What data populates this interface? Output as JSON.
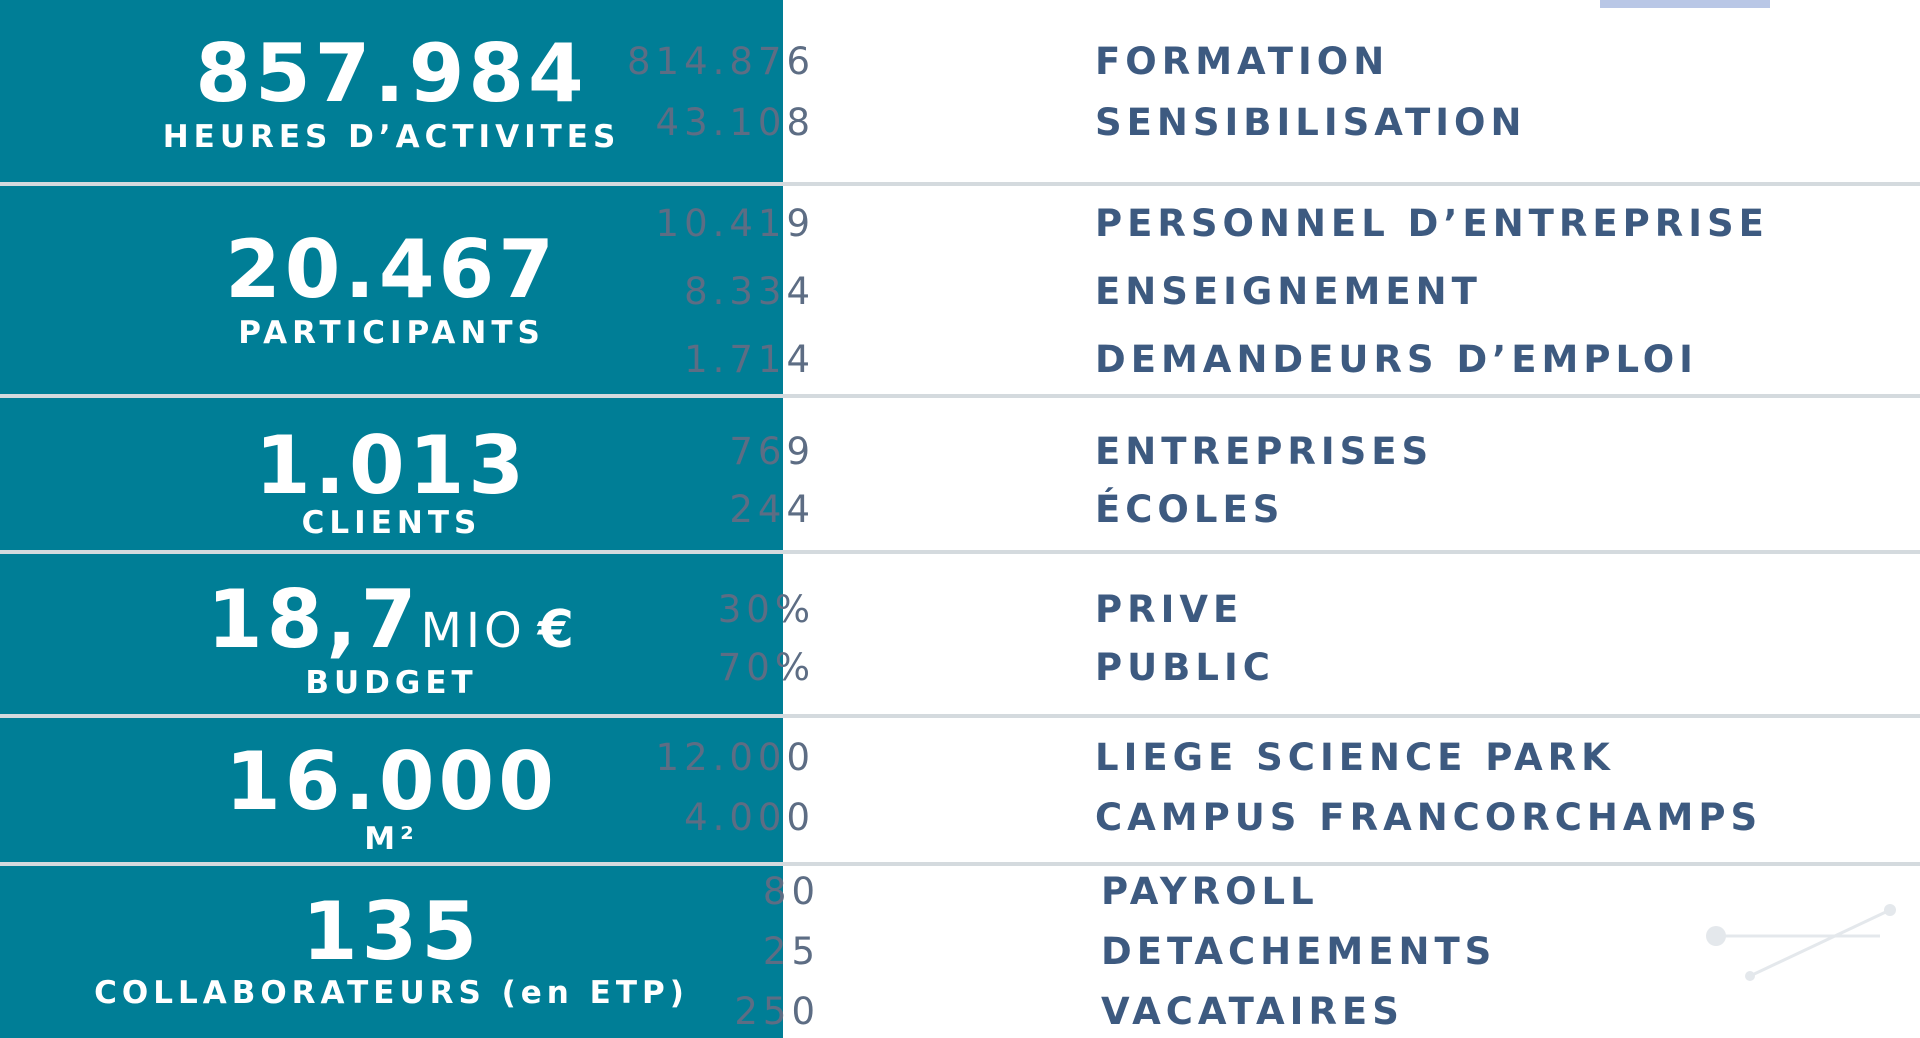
{
  "colors": {
    "accent": "#007e96",
    "value_text": "#5d6d84",
    "label_text": "#3d5a80",
    "separator": "#d4dade"
  },
  "stats": [
    {
      "number": "857.984",
      "label": "HEURES D’ACTIVITES",
      "details": [
        {
          "value": "814.876",
          "label": "FORMATION"
        },
        {
          "value": "43.108",
          "label": "SENSIBILISATION"
        }
      ]
    },
    {
      "number": "20.467",
      "label": "PARTICIPANTS",
      "details": [
        {
          "value": "10.419",
          "label": "PERSONNEL D’ENTREPRISE"
        },
        {
          "value": "8.334",
          "label": "ENSEIGNEMENT"
        },
        {
          "value": "1.714",
          "label": "DEMANDEURS D’EMPLOI"
        }
      ]
    },
    {
      "number": "1.013",
      "label": "CLIENTS",
      "details": [
        {
          "value": "769",
          "label": "ENTREPRISES"
        },
        {
          "value": "244",
          "label": "ÉCOLES"
        }
      ]
    },
    {
      "number": "18,7",
      "unit": "MIO",
      "unit_symbol": "€",
      "label": "BUDGET",
      "details": [
        {
          "value": "30%",
          "label": "PRIVE"
        },
        {
          "value": "70%",
          "label": "PUBLIC"
        }
      ]
    },
    {
      "number": "16.000",
      "label": "M²",
      "details": [
        {
          "value": "12.000",
          "label": "LIEGE SCIENCE PARK"
        },
        {
          "value": "4.000",
          "label": "CAMPUS FRANCORCHAMPS"
        }
      ]
    },
    {
      "number": "135",
      "label": "COLLABORATEURS (en ETP)",
      "details": [
        {
          "value": "80",
          "label": "PAYROLL"
        },
        {
          "value": "25",
          "label": "DETACHEMENTS"
        },
        {
          "value": "250",
          "label": "VACATAIRES"
        }
      ]
    }
  ]
}
